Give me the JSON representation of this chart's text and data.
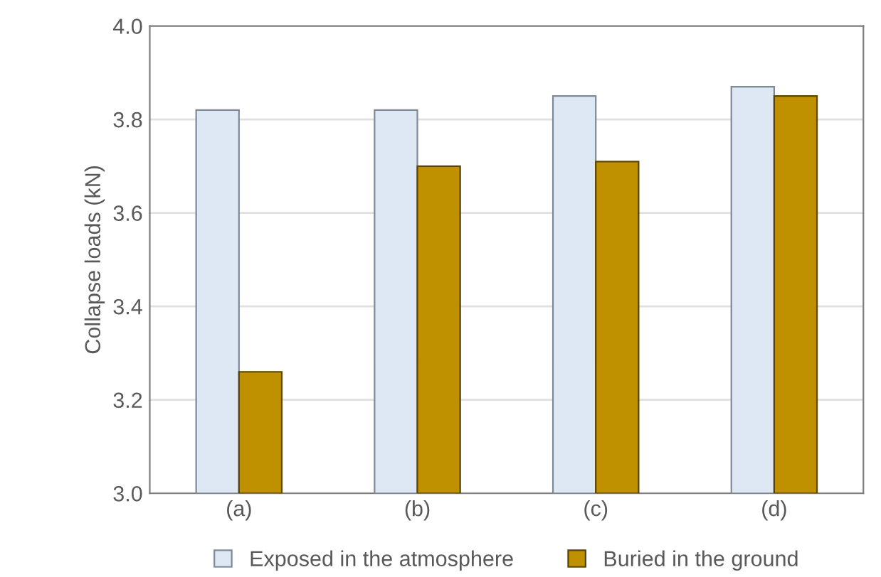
{
  "chart_data": {
    "type": "bar",
    "ylabel": "Collapse loads (kN)",
    "categories": [
      "(a)",
      "(b)",
      "(c)",
      "(d)"
    ],
    "series": [
      {
        "name": "Exposed in the atmosphere",
        "color": "#dde8f4",
        "values": [
          3.82,
          3.82,
          3.85,
          3.87
        ]
      },
      {
        "name": "Buried in the ground",
        "color": "#bf9000",
        "values": [
          3.26,
          3.7,
          3.71,
          3.85
        ]
      }
    ],
    "ylim": [
      3.0,
      4.0
    ],
    "yticks": [
      {
        "value": 3.0,
        "label": "3.0"
      },
      3.2,
      3.4,
      3.6,
      3.8,
      {
        "value": 4.0,
        "label": "4.0"
      }
    ],
    "grid": "y",
    "legend": "bottom"
  }
}
